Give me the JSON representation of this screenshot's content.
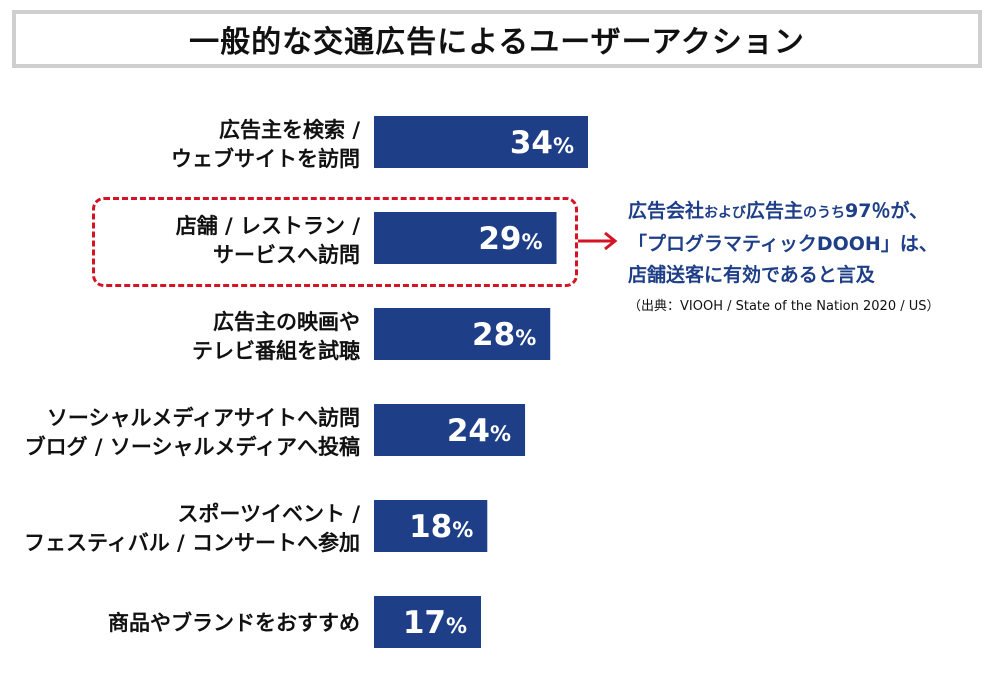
{
  "title": "一般的な交通広告によるユーザーアクション",
  "chart_data": {
    "type": "bar",
    "orientation": "horizontal",
    "categories": [
      [
        "広告主を検索 /",
        "ウェブサイトを訪問"
      ],
      [
        "店舗 / レストラン /",
        "サービスへ訪問"
      ],
      [
        "広告主の映画や",
        "テレビ番組を試聴"
      ],
      [
        "ソーシャルメディアサイトへ訪問",
        "ブログ / ソーシャルメディアへ投稿"
      ],
      [
        "スポーツイベント /",
        "フェスティバル / コンサートへ参加"
      ],
      [
        "商品やブランドをおすすめ"
      ]
    ],
    "values": [
      34,
      29,
      28,
      24,
      18,
      17
    ],
    "value_suffix": "%",
    "bar_color": "#1e3f87",
    "highlighted_index": 1,
    "highlight_color": "#d41425"
  },
  "annotation": {
    "line1_a": "広告会社",
    "line1_b": "および",
    "line1_c": "広告主",
    "line1_d": "のうち",
    "line1_e": "97％が、",
    "line2": "「プログラマティックDOOH」は、",
    "line3": "店舗送客に有効であると言及",
    "source": "（出典：VIOOH / State of the Nation 2020 / US）"
  }
}
